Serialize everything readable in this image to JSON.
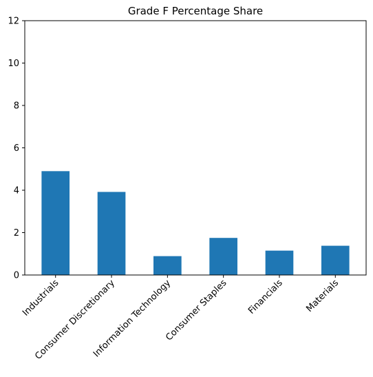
{
  "chart_data": {
    "type": "bar",
    "title": "Grade F Percentage Share",
    "xlabel": "",
    "ylabel": "",
    "categories": [
      "Industrials",
      "Consumer Discretionary",
      "Information Technology",
      "Consumer Staples",
      "Financials",
      "Materials"
    ],
    "values": [
      4.9,
      3.92,
      0.89,
      1.75,
      1.15,
      1.38
    ],
    "ylim": [
      0,
      12
    ],
    "yticks": [
      0,
      2,
      4,
      6,
      8,
      10,
      12
    ],
    "bar_color": "#1f77b4",
    "grid": false,
    "legend": "none"
  }
}
